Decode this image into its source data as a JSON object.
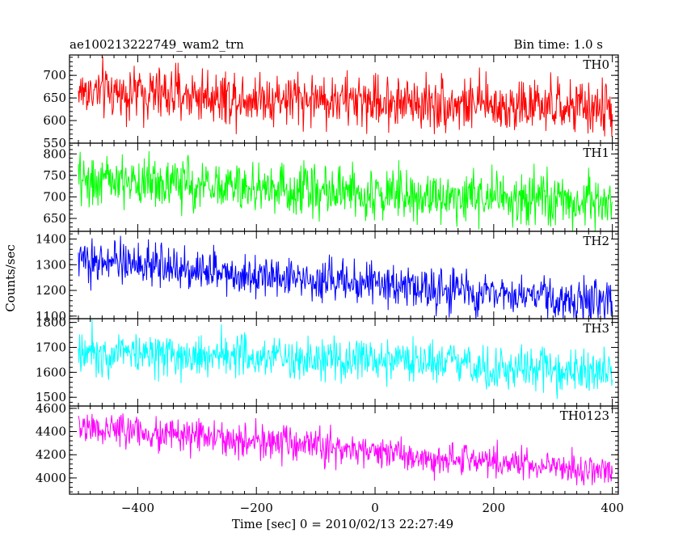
{
  "header": {
    "title": "ae100213222749_wam2_trn",
    "bin_time": "Bin time: 1.0 s"
  },
  "chart_data": {
    "type": "line",
    "title": "ae100213222749_wam2_trn",
    "xlabel": "Time [sec] 0 = 2010/02/13 22:27:49",
    "ylabel": "Counts/sec",
    "xlim": [
      -515,
      410
    ],
    "x_ticks": [
      -400,
      -200,
      0,
      200,
      400
    ],
    "x_tick_labels": [
      "−400",
      "−200",
      "0",
      "200",
      "400"
    ],
    "x_range": [
      -500,
      400
    ],
    "grid": false,
    "series": [
      {
        "name": "TH0",
        "color": "#ff0000",
        "ylim": [
          550,
          745
        ],
        "y_ticks": [
          550,
          600,
          650,
          700
        ],
        "y_tick_labels": [
          "550",
          "600",
          "650",
          "700"
        ],
        "trend_start": 665,
        "trend_end": 625,
        "noise": 27,
        "noise_amp": 1.9,
        "values": [
          665,
          660,
          655,
          650,
          645,
          640,
          635,
          630,
          625
        ]
      },
      {
        "name": "TH1",
        "color": "#00ff00",
        "ylim": [
          620,
          825
        ],
        "y_ticks": [
          650,
          700,
          750,
          800
        ],
        "y_tick_labels": [
          "650",
          "700",
          "750",
          "800"
        ],
        "trend_start": 740,
        "trend_end": 685,
        "noise": 27,
        "noise_amp": 1.9,
        "values": [
          740,
          733,
          726,
          720,
          713,
          706,
          699,
          692,
          685
        ]
      },
      {
        "name": "TH2",
        "color": "#0000ff",
        "ylim": [
          1090,
          1430
        ],
        "y_ticks": [
          1100,
          1200,
          1300,
          1400
        ],
        "y_tick_labels": [
          "1100",
          "1200",
          "1300",
          "1400"
        ],
        "trend_start": 1320,
        "trend_end": 1150,
        "noise": 36,
        "noise_amp": 1.9,
        "values": [
          1320,
          1299,
          1278,
          1256,
          1235,
          1214,
          1192,
          1171,
          1150
        ]
      },
      {
        "name": "TH3",
        "color": "#00ffff",
        "ylim": [
          1465,
          1815
        ],
        "y_ticks": [
          1500,
          1600,
          1700,
          1800
        ],
        "y_tick_labels": [
          "1500",
          "1600",
          "1700",
          "1800"
        ],
        "trend_start": 1690,
        "trend_end": 1600,
        "noise": 40,
        "noise_amp": 1.9,
        "values": [
          1690,
          1679,
          1668,
          1656,
          1645,
          1634,
          1622,
          1611,
          1600
        ]
      },
      {
        "name": "TH0123",
        "color": "#ff00ff",
        "ylim": [
          3860,
          4620
        ],
        "y_ticks": [
          4000,
          4200,
          4400,
          4600
        ],
        "y_tick_labels": [
          "4000",
          "4200",
          "4400",
          "4600"
        ],
        "trend_start": 4440,
        "trend_end": 4050,
        "noise": 65,
        "noise_amp": 1.9,
        "values": [
          4440,
          4391,
          4342,
          4294,
          4245,
          4196,
          4148,
          4099,
          4050
        ]
      }
    ]
  }
}
